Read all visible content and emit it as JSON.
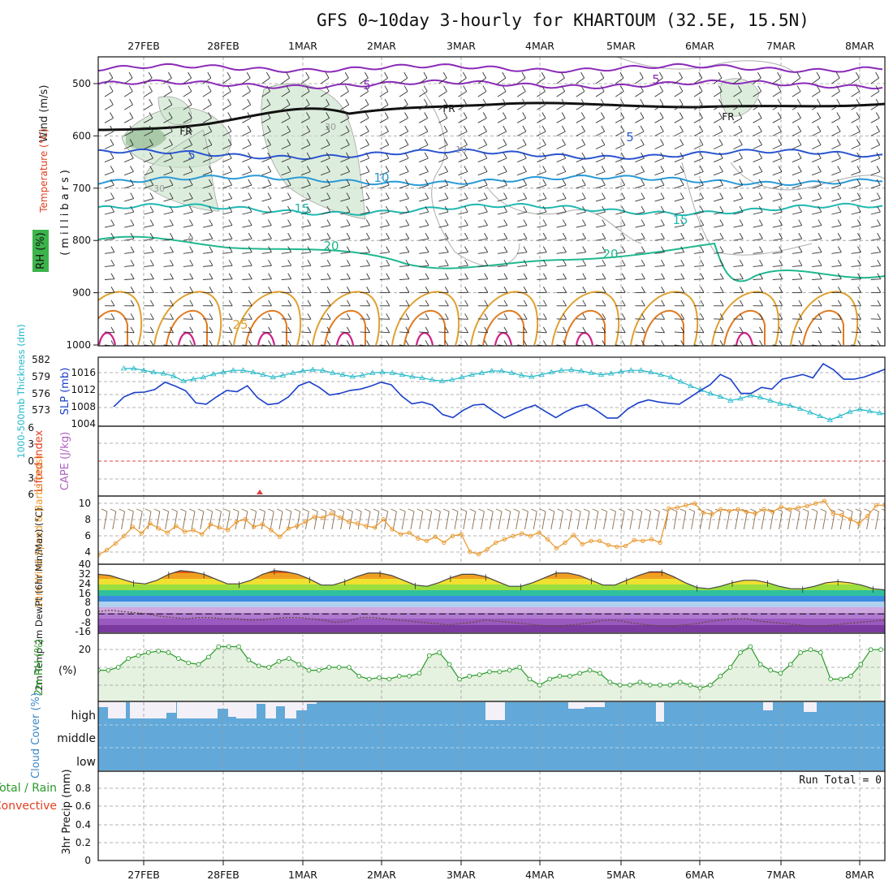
{
  "title": "GFS 0~10day 3-hourly for KHARTOUM (32.5E, 15.5N)",
  "dates": [
    "27FEB",
    "28FEB",
    "1MAR",
    "2MAR",
    "3MAR",
    "4MAR",
    "5MAR",
    "6MAR",
    "7MAR",
    "8MAR"
  ],
  "colors": {
    "wind": "#222222",
    "temperature_label": "#e04020",
    "rh_band": "#3cb44b",
    "cyan_line": "#20b8c8",
    "slp_line": "#1a3fcc",
    "ws_line": "#e8962a",
    "rh2m": "#2a9a2a",
    "cloud": "#62a8d8",
    "lifted": "#e04020",
    "cape": "#b060c0"
  },
  "panels": {
    "upper": {
      "ylabel_lines": [
        "Wind (m/s)",
        "Temperature (°C)",
        "RH (%)"
      ],
      "axis_label": "(millibars)",
      "y_ticks": [
        "500",
        "600",
        "700",
        "800",
        "900",
        "1000"
      ],
      "y_values": [
        500,
        600,
        700,
        800,
        900,
        1000
      ],
      "contour_labels": [
        "5",
        "5",
        "FR",
        "FR",
        "FR",
        "5",
        "10",
        "15",
        "15",
        "20",
        "20",
        "25",
        "5",
        "30",
        "30",
        "10",
        "0"
      ]
    },
    "thickness": {
      "ylabel_left": "1000-500mb Thickness (dm)",
      "ylabel_right": "SLP (mb)",
      "left_ticks": [
        "582",
        "579",
        "576",
        "573"
      ],
      "right_ticks": [
        "1016",
        "1012",
        "1008",
        "1004"
      ]
    },
    "stability": {
      "ylabel_left": "Lifted Index",
      "ylabel_right": "CAPE (J/kg)",
      "ticks": [
        "6",
        "3",
        "0",
        "3",
        "6"
      ]
    },
    "wind10m": {
      "ylabel": "10m Wind Speed & Barbs (m/s)",
      "ticks": [
        "10",
        "8",
        "6",
        "4"
      ]
    },
    "temp2m": {
      "ylabel": "2m Temp 2m DewPt (6hr Min/Max) (°C)",
      "ticks": [
        "40",
        "32",
        "24",
        "16",
        "8",
        "0",
        "-8",
        "-16"
      ]
    },
    "rh2m": {
      "ylabel": "2m RH (%)",
      "ticks": [
        "20"
      ]
    },
    "cloud": {
      "ylabel": "Cloud Cover (%)",
      "levels": [
        "high",
        "middle",
        "low"
      ]
    },
    "precip": {
      "ylabel_1": "Total / Rain",
      "ylabel_2": "Convective",
      "ylabel_3": "3hr Precip (mm)",
      "ticks": [
        "0.8",
        "0.6",
        "0.4",
        "0.2",
        "0"
      ],
      "run_total": "Run Total = 0"
    }
  },
  "chart_data": [
    {
      "type": "line",
      "title": "1000-500mb Thickness (dm) / SLP (mb)",
      "x_start": "26FEB 18Z",
      "x_step_hours": 3,
      "series": [
        {
          "name": "1000-500mb Thickness (dm)",
          "ylim": [
            571,
            582
          ],
          "values": [
            580.2,
            580.2,
            579.9,
            579.6,
            579.4,
            579.0,
            578.2,
            578.5,
            578.8,
            579.3,
            579.6,
            579.9,
            579.9,
            579.6,
            579.2,
            578.8,
            579.1,
            579.5,
            579.8,
            580.0,
            579.9,
            579.5,
            579.2,
            578.9,
            579.1,
            579.5,
            579.6,
            579.5,
            579.2,
            578.9,
            578.7,
            578.4,
            578.2,
            578.4,
            578.8,
            579.2,
            579.5,
            579.8,
            579.8,
            579.5,
            579.1,
            578.9,
            579.2,
            579.6,
            579.9,
            580.0,
            579.8,
            579.5,
            579.2,
            579.4,
            579.7,
            579.9,
            579.9,
            579.6,
            579.2,
            578.8,
            578.1,
            577.4,
            576.8,
            576.2,
            575.7,
            575.1,
            575.4,
            575.9,
            575.6,
            575.1,
            574.6,
            574.3,
            573.8,
            573.2,
            572.6,
            572.0,
            572.6,
            573.3,
            573.7,
            573.4,
            573.1,
            572.8,
            572.6,
            572.4,
            572.2,
            572.4
          ]
        },
        {
          "name": "SLP (mb)",
          "ylim": [
            1003,
            1019
          ],
          "values": [
            1007.5,
            1009.8,
            1010.8,
            1010.9,
            1011.5,
            1013.2,
            1012.3,
            1011.2,
            1008.4,
            1008.1,
            1009.8,
            1011.3,
            1011.0,
            1012.4,
            1009.6,
            1008.0,
            1008.3,
            1009.8,
            1012.4,
            1013.3,
            1012.0,
            1010.2,
            1010.6,
            1011.3,
            1011.6,
            1012.3,
            1013.2,
            1012.6,
            1010.0,
            1008.2,
            1008.6,
            1007.9,
            1005.7,
            1005.0,
            1006.7,
            1007.9,
            1008.1,
            1006.4,
            1004.9,
            1006.0,
            1007.1,
            1007.9,
            1006.4,
            1005.0,
            1006.4,
            1007.5,
            1008.0,
            1006.6,
            1004.9,
            1004.9,
            1007.0,
            1008.4,
            1009.1,
            1008.6,
            1008.3,
            1008.1,
            1009.6,
            1011.2,
            1012.6,
            1015.0,
            1013.9,
            1010.6,
            1010.6,
            1012.0,
            1011.6,
            1013.9,
            1014.4,
            1015.0,
            1014.2,
            1017.5,
            1016.1,
            1013.9,
            1013.9,
            1014.4,
            1015.3,
            1016.2
          ]
        }
      ]
    },
    {
      "type": "line",
      "title": "10m Wind Speed (m/s)",
      "x_start": "26FEB 18Z",
      "x_step_hours": 3,
      "ylim": [
        2.4,
        10.6
      ],
      "series": [
        {
          "name": "10m Wind Speed",
          "values": [
            3.5,
            4.1,
            4.9,
            5.8,
            6.9,
            6.1,
            7.3,
            6.7,
            6.2,
            7.0,
            6.3,
            6.5,
            6.0,
            7.2,
            6.8,
            6.5,
            7.5,
            7.8,
            6.9,
            7.2,
            6.5,
            5.7,
            6.7,
            7.0,
            7.5,
            8.1,
            8.0,
            8.5,
            8.0,
            7.5,
            7.3,
            7.0,
            6.8,
            7.8,
            6.6,
            6.0,
            6.2,
            5.5,
            5.2,
            5.7,
            5.0,
            5.8,
            6.0,
            3.9,
            3.6,
            4.2,
            5.0,
            5.4,
            5.8,
            6.1,
            5.8,
            6.2,
            5.4,
            4.3,
            5.0,
            5.9,
            4.8,
            5.2,
            5.2,
            4.7,
            4.5,
            4.6,
            5.3,
            5.2,
            5.4,
            5.0,
            9.1,
            9.2,
            9.5,
            9.7,
            8.6,
            8.4,
            9.0,
            8.8,
            9.0,
            8.7,
            8.5,
            9.0,
            8.7,
            9.3,
            9.0,
            9.2,
            9.4,
            9.7,
            10.0,
            8.5,
            8.3,
            7.8,
            7.3,
            8.2,
            9.5,
            9.5
          ]
        }
      ]
    },
    {
      "type": "area",
      "title": "2m Temp / 2m DewPt (°C)",
      "x_start": "26FEB 18Z",
      "x_step_hours": 3,
      "ylim": [
        -16,
        40
      ],
      "series": [
        {
          "name": "2m Temp",
          "values": [
            33,
            32,
            29,
            26,
            25,
            28,
            33,
            36,
            35,
            33,
            29,
            25,
            25,
            28,
            33,
            36,
            35,
            33,
            29,
            24,
            24,
            27,
            31,
            34,
            34,
            32,
            28,
            24,
            23,
            26,
            30,
            33,
            33,
            31,
            27,
            23,
            23,
            26,
            30,
            34,
            34,
            32,
            28,
            24,
            24,
            28,
            32,
            35,
            35,
            31,
            26,
            22,
            21,
            23,
            26,
            28,
            28,
            26,
            23,
            21,
            21,
            23,
            26,
            27,
            26,
            24,
            21,
            20
          ]
        },
        {
          "name": "2m DewPt",
          "values": [
            2,
            3,
            2,
            1,
            0,
            -2,
            -3,
            -4,
            -3,
            -3,
            -4,
            -4,
            -5,
            -5,
            -4,
            -3,
            -3,
            -4,
            -5,
            -7,
            -6,
            -3,
            -3,
            -4,
            -5,
            -6,
            -7,
            -8,
            -9,
            -8,
            -7,
            -5,
            -6,
            -7,
            -8,
            -9,
            -10,
            -10,
            -9,
            -8,
            -6,
            -5,
            -6,
            -8,
            -9,
            -10,
            -10,
            -9,
            -8,
            -6,
            -5,
            -4,
            -4,
            -6,
            -7,
            -8,
            -9,
            -10,
            -10,
            -9,
            -8,
            -7,
            -6,
            -5
          ]
        }
      ]
    },
    {
      "type": "area",
      "title": "2m RH (%)",
      "x_start": "26FEB 18Z",
      "x_step_hours": 3,
      "ylim": [
        4,
        26
      ],
      "series": [
        {
          "name": "2m RH",
          "values": [
            14,
            14,
            15,
            18,
            19,
            20,
            20.5,
            20,
            18,
            16.5,
            16,
            18.5,
            22,
            22,
            22,
            17.5,
            15.5,
            15,
            17,
            18,
            16,
            14,
            14,
            15,
            15,
            15,
            12,
            11,
            11.5,
            11,
            12,
            12,
            13,
            19,
            20,
            16,
            11,
            12,
            12.5,
            13.5,
            13.5,
            14,
            15,
            11,
            9,
            11,
            12,
            12,
            13,
            14,
            13,
            10,
            9,
            9,
            10,
            9,
            9,
            9,
            10,
            9,
            8,
            9,
            12,
            15,
            20,
            22,
            16,
            14,
            13,
            16,
            20,
            21,
            20,
            11,
            11,
            12,
            16,
            21,
            21
          ]
        }
      ]
    },
    {
      "type": "bar",
      "title": "High Cloud Cover (%)",
      "x_start": "26FEB 18Z",
      "x_step_hours": 3,
      "ylim": [
        0,
        100
      ],
      "series": [
        {
          "name": "high cloud",
          "values": [
            30,
            28,
            100,
            100,
            100,
            100,
            45,
            100,
            100,
            30,
            100,
            100,
            30,
            100,
            100,
            45,
            30,
            100,
            100,
            100,
            100,
            100,
            100,
            100,
            100,
            100,
            100,
            100,
            100,
            100,
            100,
            100,
            100,
            100,
            100,
            100,
            100,
            100,
            100,
            100,
            100,
            100,
            100,
            100,
            100,
            100,
            100,
            100,
            100,
            100,
            100,
            100,
            100,
            100,
            100,
            100,
            100,
            100,
            100,
            100,
            100,
            100,
            100,
            100,
            100,
            100,
            100,
            100,
            100,
            100,
            100,
            100,
            100,
            100,
            100,
            100,
            100,
            100,
            100,
            100
          ]
        }
      ]
    },
    {
      "type": "bar",
      "title": "3hr Precip (mm)",
      "ylim": [
        0,
        1
      ],
      "series": [
        {
          "name": "Total / Rain",
          "values": []
        }
      ]
    }
  ]
}
